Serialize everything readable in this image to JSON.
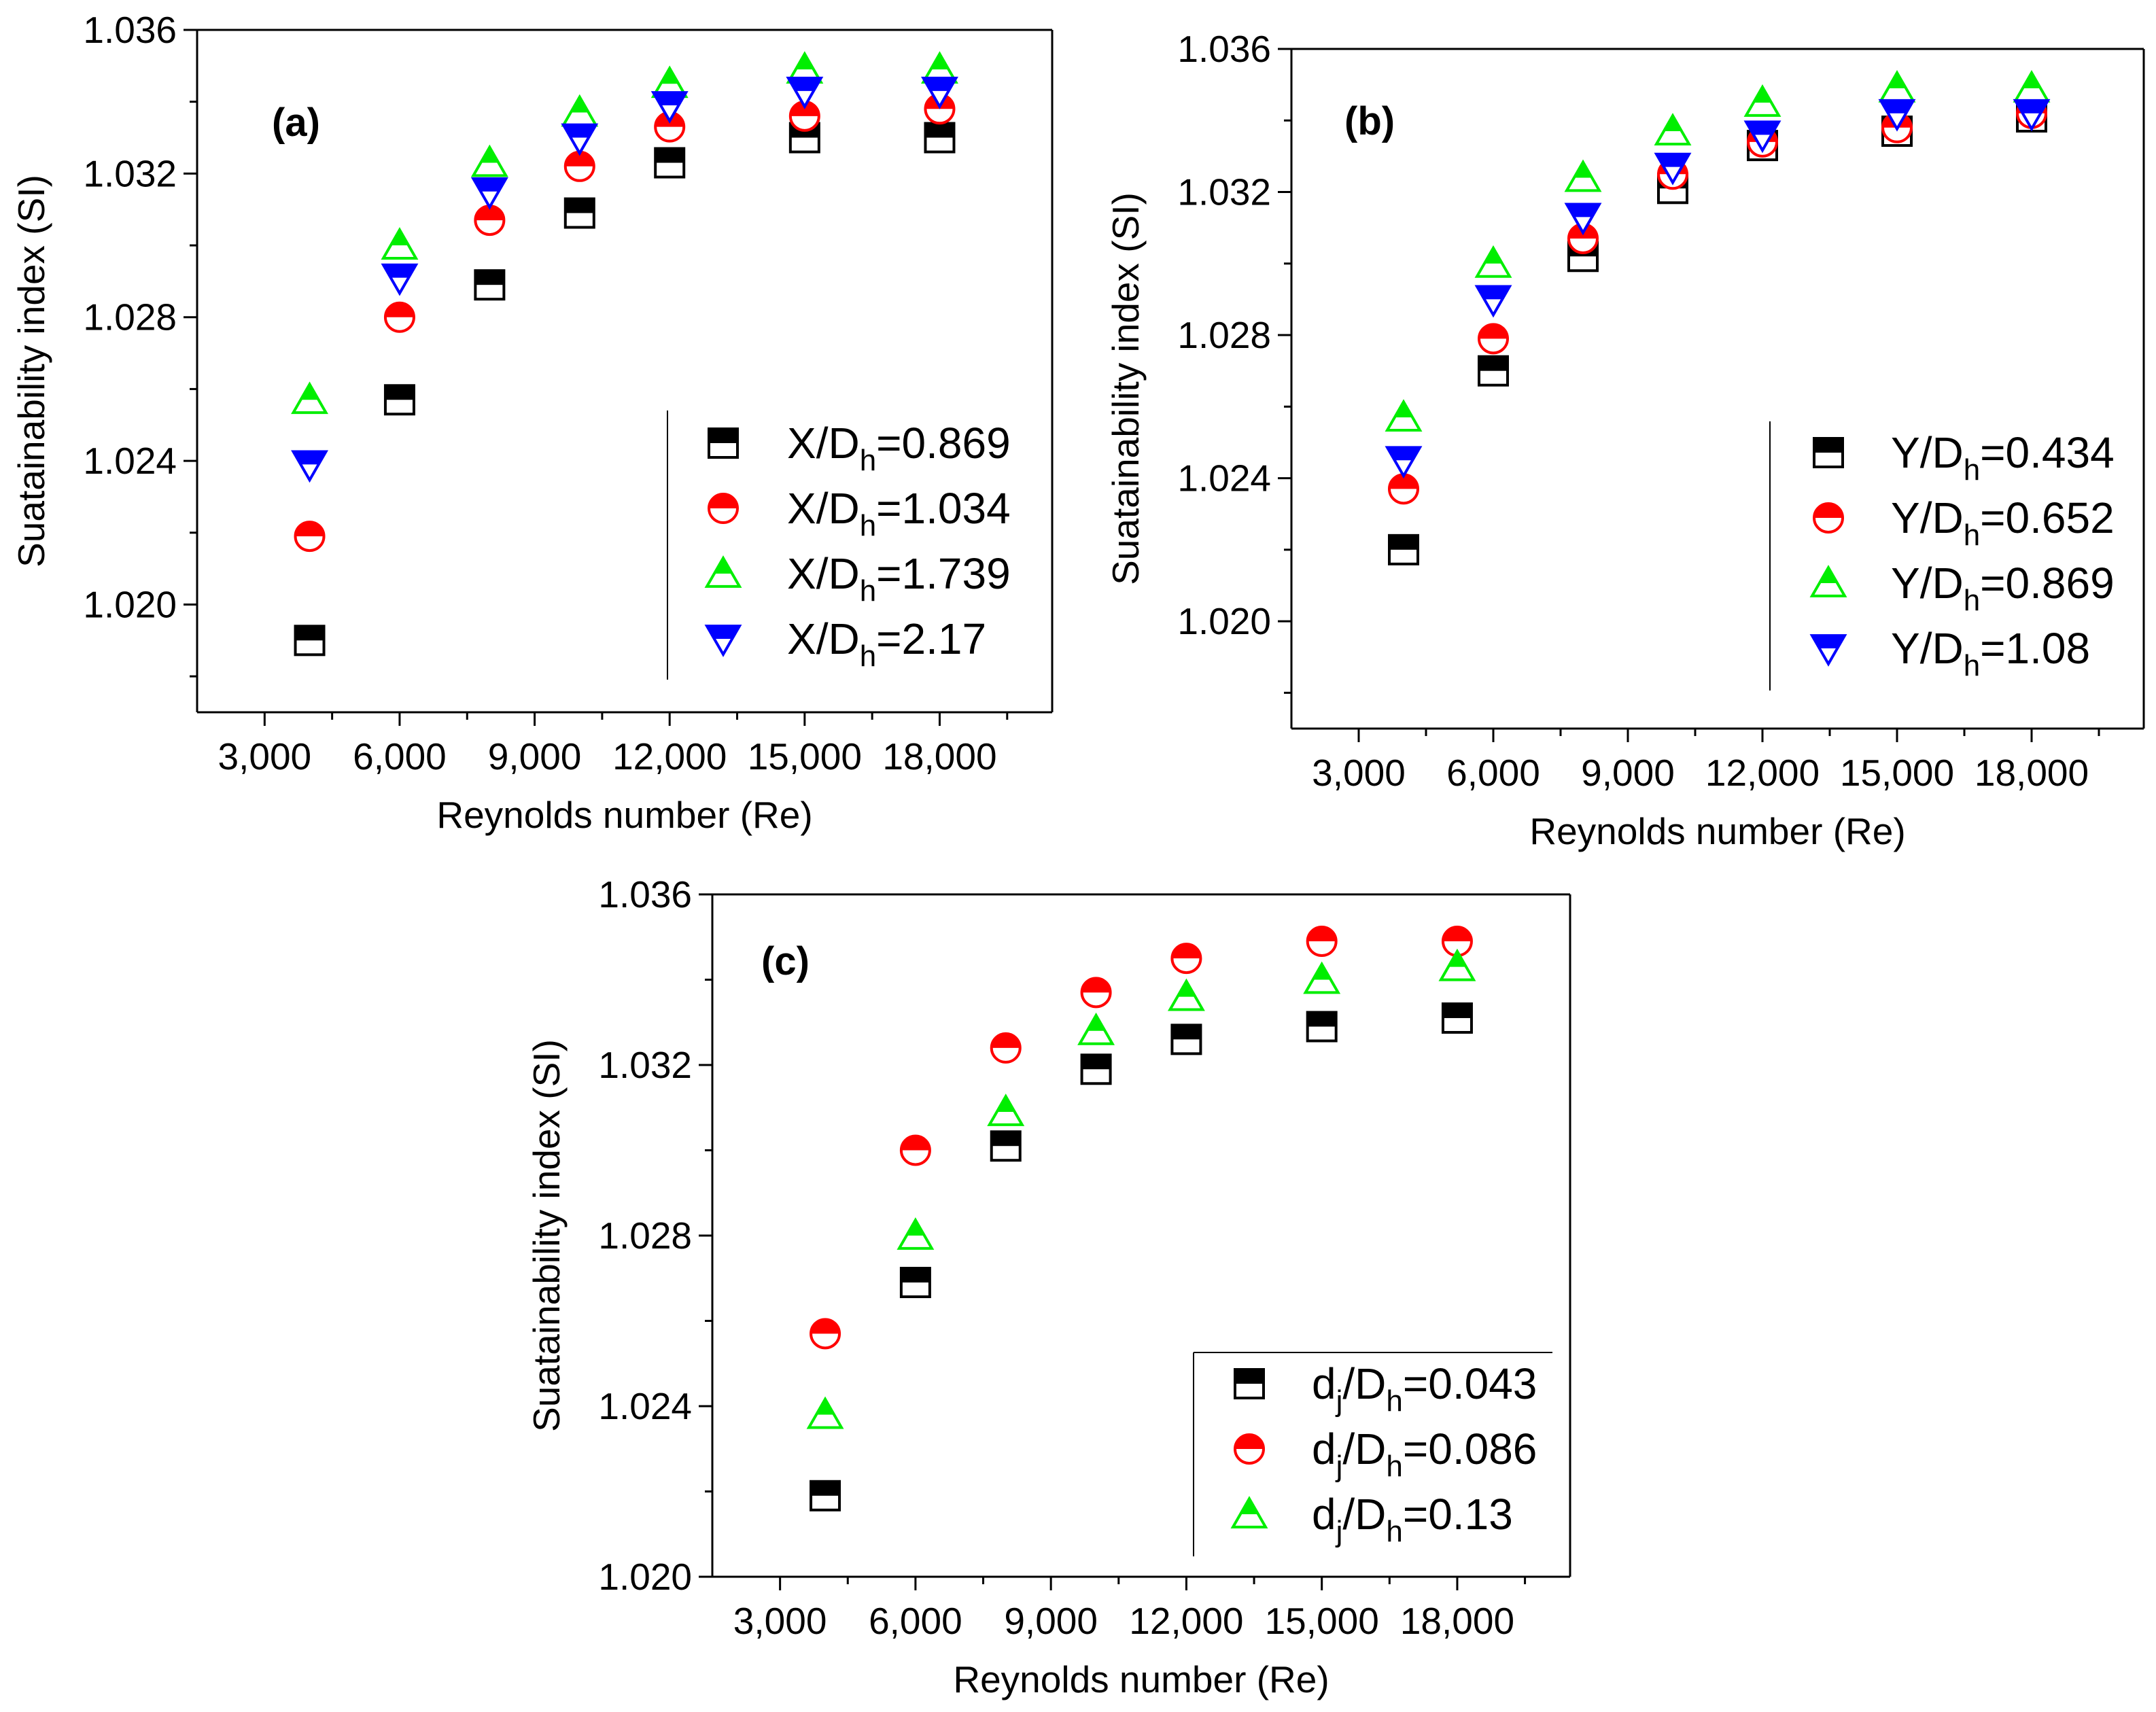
{
  "chart_data": [
    {
      "type": "scatter",
      "panel_label": "(a)",
      "xlabel": "Reynolds number (Re)",
      "ylabel": "Suatainability index (SI)",
      "xlim": [
        1500,
        20500
      ],
      "ylim": [
        1.017,
        1.036
      ],
      "xticks": [
        3000,
        6000,
        9000,
        12000,
        15000,
        18000
      ],
      "xtick_labels": [
        "3,000",
        "6,000",
        "9,000",
        "12,000",
        "15,000",
        "18,000"
      ],
      "yticks": [
        1.02,
        1.024,
        1.028,
        1.032,
        1.036
      ],
      "ytick_labels": [
        "1.020",
        "1.024",
        "1.028",
        "1.032",
        "1.036"
      ],
      "legend_position": "bottom-right",
      "x": [
        4000,
        6000,
        8000,
        10000,
        12000,
        15000,
        18000
      ],
      "series": [
        {
          "name": "X/Dh=0.869",
          "label_base": "X/D",
          "label_sub": "h",
          "label_value": "=0.869",
          "marker": "square",
          "color": "#000000",
          "values": [
            1.019,
            1.0257,
            1.0289,
            1.0309,
            1.0323,
            1.033,
            1.033
          ]
        },
        {
          "name": "X/Dh=1.034",
          "label_base": "X/D",
          "label_sub": "h",
          "label_value": "=1.034",
          "marker": "circle",
          "color": "#ff0000",
          "values": [
            1.0219,
            1.028,
            1.0307,
            1.0322,
            1.0333,
            1.0336,
            1.0338
          ]
        },
        {
          "name": "X/Dh=1.739",
          "label_base": "X/D",
          "label_sub": "h",
          "label_value": "=1.739",
          "marker": "triangle-up",
          "color": "#00ee00",
          "values": [
            1.0257,
            1.03,
            1.0323,
            1.0337,
            1.0345,
            1.0349,
            1.0349
          ]
        },
        {
          "name": "X/Dh=2.17",
          "label_base": "X/D",
          "label_sub": "h",
          "label_value": "=2.17",
          "marker": "triangle-down",
          "color": "#0000ff",
          "values": [
            1.0239,
            1.0291,
            1.0315,
            1.033,
            1.0339,
            1.0343,
            1.0343
          ]
        }
      ]
    },
    {
      "type": "scatter",
      "panel_label": "(b)",
      "xlabel": "Reynolds number (Re)",
      "ylabel": "Suatainability index (SI)",
      "xlim": [
        1500,
        20500
      ],
      "ylim": [
        1.017,
        1.036
      ],
      "xticks": [
        3000,
        6000,
        9000,
        12000,
        15000,
        18000
      ],
      "xtick_labels": [
        "3,000",
        "6,000",
        "9,000",
        "12,000",
        "15,000",
        "18,000"
      ],
      "yticks": [
        1.02,
        1.024,
        1.028,
        1.032,
        1.036
      ],
      "ytick_labels": [
        "1.020",
        "1.024",
        "1.028",
        "1.032",
        "1.036"
      ],
      "legend_position": "bottom-right",
      "x": [
        4000,
        6000,
        8000,
        10000,
        12000,
        15000,
        18000
      ],
      "series": [
        {
          "name": "Y/Dh=0.434",
          "label_base": "Y/D",
          "label_sub": "h",
          "label_value": "=0.434",
          "marker": "square",
          "color": "#000000",
          "values": [
            1.022,
            1.027,
            1.0302,
            1.0321,
            1.0333,
            1.0337,
            1.0341
          ]
        },
        {
          "name": "Y/Dh=0.652",
          "label_base": "Y/D",
          "label_sub": "h",
          "label_value": "=0.652",
          "marker": "circle",
          "color": "#ff0000",
          "values": [
            1.0237,
            1.0279,
            1.0307,
            1.0325,
            1.0334,
            1.0338,
            1.0342
          ]
        },
        {
          "name": "Y/Dh=0.869",
          "label_base": "Y/D",
          "label_sub": "h",
          "label_value": "=0.869",
          "marker": "triangle-up",
          "color": "#00ee00",
          "values": [
            1.0257,
            1.03,
            1.0324,
            1.0337,
            1.0345,
            1.0349,
            1.0349
          ]
        },
        {
          "name": "Y/Dh=1.08",
          "label_base": "Y/D",
          "label_sub": "h",
          "label_value": "=1.08",
          "marker": "triangle-down",
          "color": "#0000ff",
          "values": [
            1.0245,
            1.029,
            1.0313,
            1.0327,
            1.0336,
            1.0342,
            1.0342
          ]
        }
      ]
    },
    {
      "type": "scatter",
      "panel_label": "(c)",
      "xlabel": "Reynolds number (Re)",
      "ylabel": "Suatainability index (SI)",
      "xlim": [
        1500,
        20500
      ],
      "ylim": [
        1.02,
        1.036
      ],
      "xticks": [
        3000,
        6000,
        9000,
        12000,
        15000,
        18000
      ],
      "xtick_labels": [
        "3,000",
        "6,000",
        "9,000",
        "12,000",
        "15,000",
        "18,000"
      ],
      "yticks": [
        1.02,
        1.024,
        1.028,
        1.032,
        1.036
      ],
      "ytick_labels": [
        "1.020",
        "1.024",
        "1.028",
        "1.032",
        "1.036"
      ],
      "legend_position": "bottom-right",
      "x": [
        4000,
        6000,
        8000,
        10000,
        12000,
        15000,
        18000
      ],
      "series": [
        {
          "name": "dj/Dh=0.043",
          "label_base": "d",
          "label_sub": "j",
          "label_mid": "/D",
          "label_sub2": "h",
          "label_value": "=0.043",
          "marker": "square",
          "color": "#000000",
          "values": [
            1.0219,
            1.0269,
            1.0301,
            1.0319,
            1.0326,
            1.0329,
            1.0331
          ]
        },
        {
          "name": "dj/Dh=0.086",
          "label_base": "d",
          "label_sub": "j",
          "label_mid": "/D",
          "label_sub2": "h",
          "label_value": "=0.086",
          "marker": "circle",
          "color": "#ff0000",
          "values": [
            1.0257,
            1.03,
            1.0324,
            1.0337,
            1.0345,
            1.0349,
            1.0349
          ]
        },
        {
          "name": "dj/Dh=0.13",
          "label_base": "d",
          "label_sub": "j",
          "label_mid": "/D",
          "label_sub2": "h",
          "label_value": "=0.13",
          "marker": "triangle-up",
          "color": "#00ee00",
          "values": [
            1.0238,
            1.028,
            1.0309,
            1.0328,
            1.0336,
            1.034,
            1.0343
          ]
        }
      ]
    }
  ]
}
